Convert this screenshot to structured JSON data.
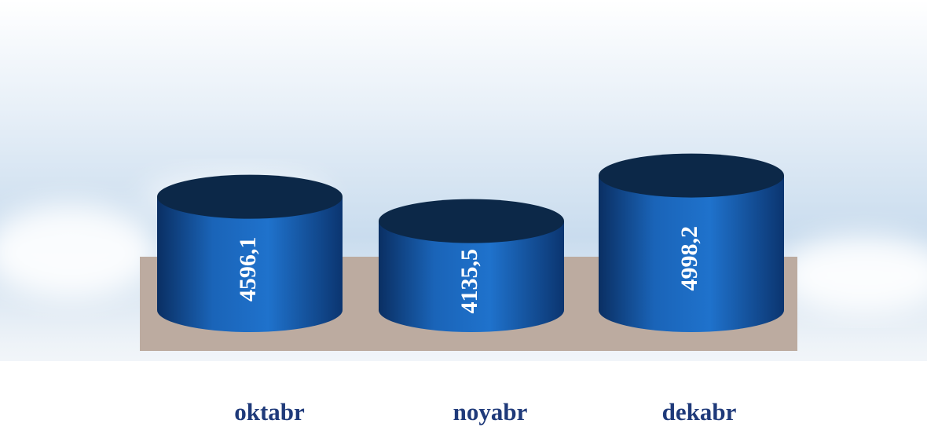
{
  "chart_data": {
    "type": "cylinder",
    "categories": [
      "oktabr",
      "noyabr",
      "dekabr"
    ],
    "values": [
      4596.1,
      4135.5,
      4998.2
    ],
    "value_labels": [
      "4596,1",
      "4135,5",
      "4998,2"
    ],
    "color": "#1a64b8",
    "ylim": [
      2450,
      5200
    ]
  }
}
